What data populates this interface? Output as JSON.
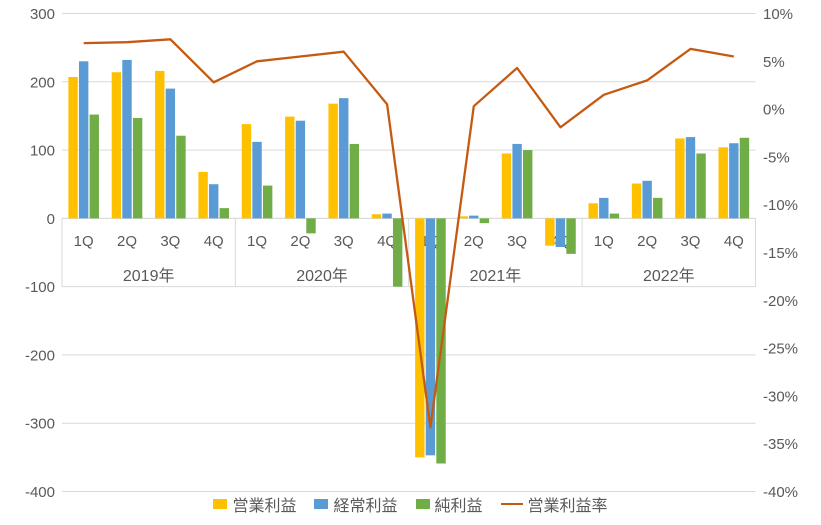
{
  "chart_data": {
    "type": "bar",
    "title": "",
    "grid": true,
    "legend_position": "bottom",
    "groups": [
      {
        "label": "2019年",
        "quarters": [
          "1Q",
          "2Q",
          "3Q",
          "4Q"
        ]
      },
      {
        "label": "2020年",
        "quarters": [
          "1Q",
          "2Q",
          "3Q",
          "4Q"
        ]
      },
      {
        "label": "2021年",
        "quarters": [
          "1Q",
          "2Q",
          "3Q",
          "4Q"
        ]
      },
      {
        "label": "2022年",
        "quarters": [
          "1Q",
          "2Q",
          "3Q",
          "4Q"
        ]
      }
    ],
    "categories": [
      "1Q",
      "2Q",
      "3Q",
      "4Q",
      "1Q",
      "2Q",
      "3Q",
      "4Q",
      "1Q",
      "2Q",
      "3Q",
      "4Q",
      "1Q",
      "2Q",
      "3Q",
      "4Q"
    ],
    "series": [
      {
        "name": "営業利益",
        "type": "bar",
        "axis": "left",
        "color": "#FFC000",
        "values": [
          207,
          214,
          216,
          68,
          138,
          149,
          168,
          6,
          -350,
          3,
          95,
          -40,
          22,
          51,
          117,
          104
        ]
      },
      {
        "name": "経常利益",
        "type": "bar",
        "axis": "left",
        "color": "#5B9BD5",
        "values": [
          230,
          232,
          190,
          50,
          112,
          143,
          176,
          7,
          -347,
          4,
          109,
          -42,
          30,
          55,
          119,
          110
        ]
      },
      {
        "name": "純利益",
        "type": "bar",
        "axis": "left",
        "color": "#70AD47",
        "values": [
          152,
          147,
          121,
          15,
          48,
          -22,
          109,
          -100,
          -359,
          -7,
          100,
          -52,
          7,
          30,
          95,
          118
        ]
      },
      {
        "name": "営業利益率",
        "type": "line",
        "axis": "right",
        "color": "#C55A11",
        "values": [
          6.9,
          7.0,
          7.3,
          2.8,
          5.0,
          5.5,
          6.0,
          0.5,
          -33.3,
          0.3,
          4.3,
          -1.9,
          1.5,
          3.0,
          6.3,
          5.5
        ]
      }
    ],
    "left_axis": {
      "min": -400,
      "max": 300,
      "ticks": [
        "300",
        "200",
        "100",
        "0",
        "-100",
        "-200",
        "-300",
        "-400"
      ],
      "tick_color": "#595959",
      "negative_tick_color": "#FF0000"
    },
    "right_axis": {
      "min": -40,
      "max": 10,
      "ticks": [
        "10%",
        "5%",
        "0%",
        "-5%",
        "-10%",
        "-15%",
        "-20%",
        "-25%",
        "-30%",
        "-35%",
        "-40%"
      ],
      "tick_color": "#595959"
    },
    "gridline_color": "#D9D9D9"
  }
}
